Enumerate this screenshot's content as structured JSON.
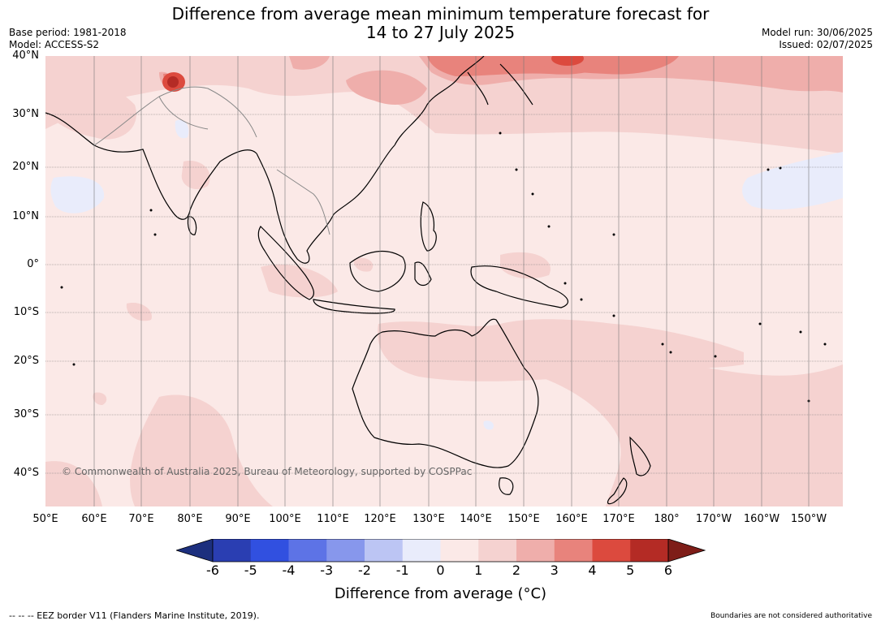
{
  "header": {
    "title_line1": "Difference from average mean minimum temperature forecast for",
    "title_line2": "14 to 27 July 2025",
    "base_period": "Base period: 1981-2018",
    "model": "Model: ACCESS-S2",
    "model_run": "Model run: 30/06/2025",
    "issued": "Issued: 02/07/2025"
  },
  "map": {
    "copyright": "© Commonwealth of Australia 2025, Bureau of Meteorology, supported by COSPPac",
    "lat_labels": [
      "40°N",
      "30°N",
      "20°N",
      "10°N",
      "0°",
      "10°S",
      "20°S",
      "30°S",
      "40°S"
    ],
    "lon_labels": [
      "50°E",
      "60°E",
      "70°E",
      "80°E",
      "90°E",
      "100°E",
      "110°E",
      "120°E",
      "130°E",
      "140°E",
      "150°E",
      "160°E",
      "170°E",
      "180°",
      "170°W",
      "160°W",
      "150°W"
    ],
    "background_color": "#fbe9e7"
  },
  "colorbar": {
    "ticks": [
      "-6",
      "-5",
      "-4",
      "-3",
      "-2",
      "-1",
      "0",
      "1",
      "2",
      "3",
      "4",
      "5",
      "6"
    ],
    "colors": [
      "#1c2f7e",
      "#2a3eb2",
      "#3150e0",
      "#5d73e6",
      "#8797ec",
      "#bcc5f4",
      "#e9ecfb",
      "#fbe9e7",
      "#f5d2d0",
      "#efaeab",
      "#e8837c",
      "#dc4a3e",
      "#b42b25",
      "#7e1d18"
    ],
    "label": "Difference from average (°C)"
  },
  "footer": {
    "eez_note": "--  --  -- EEZ border V11 (Flanders Marine Institute, 2019).",
    "boundaries_note": "Boundaries are not considered authoritative"
  }
}
